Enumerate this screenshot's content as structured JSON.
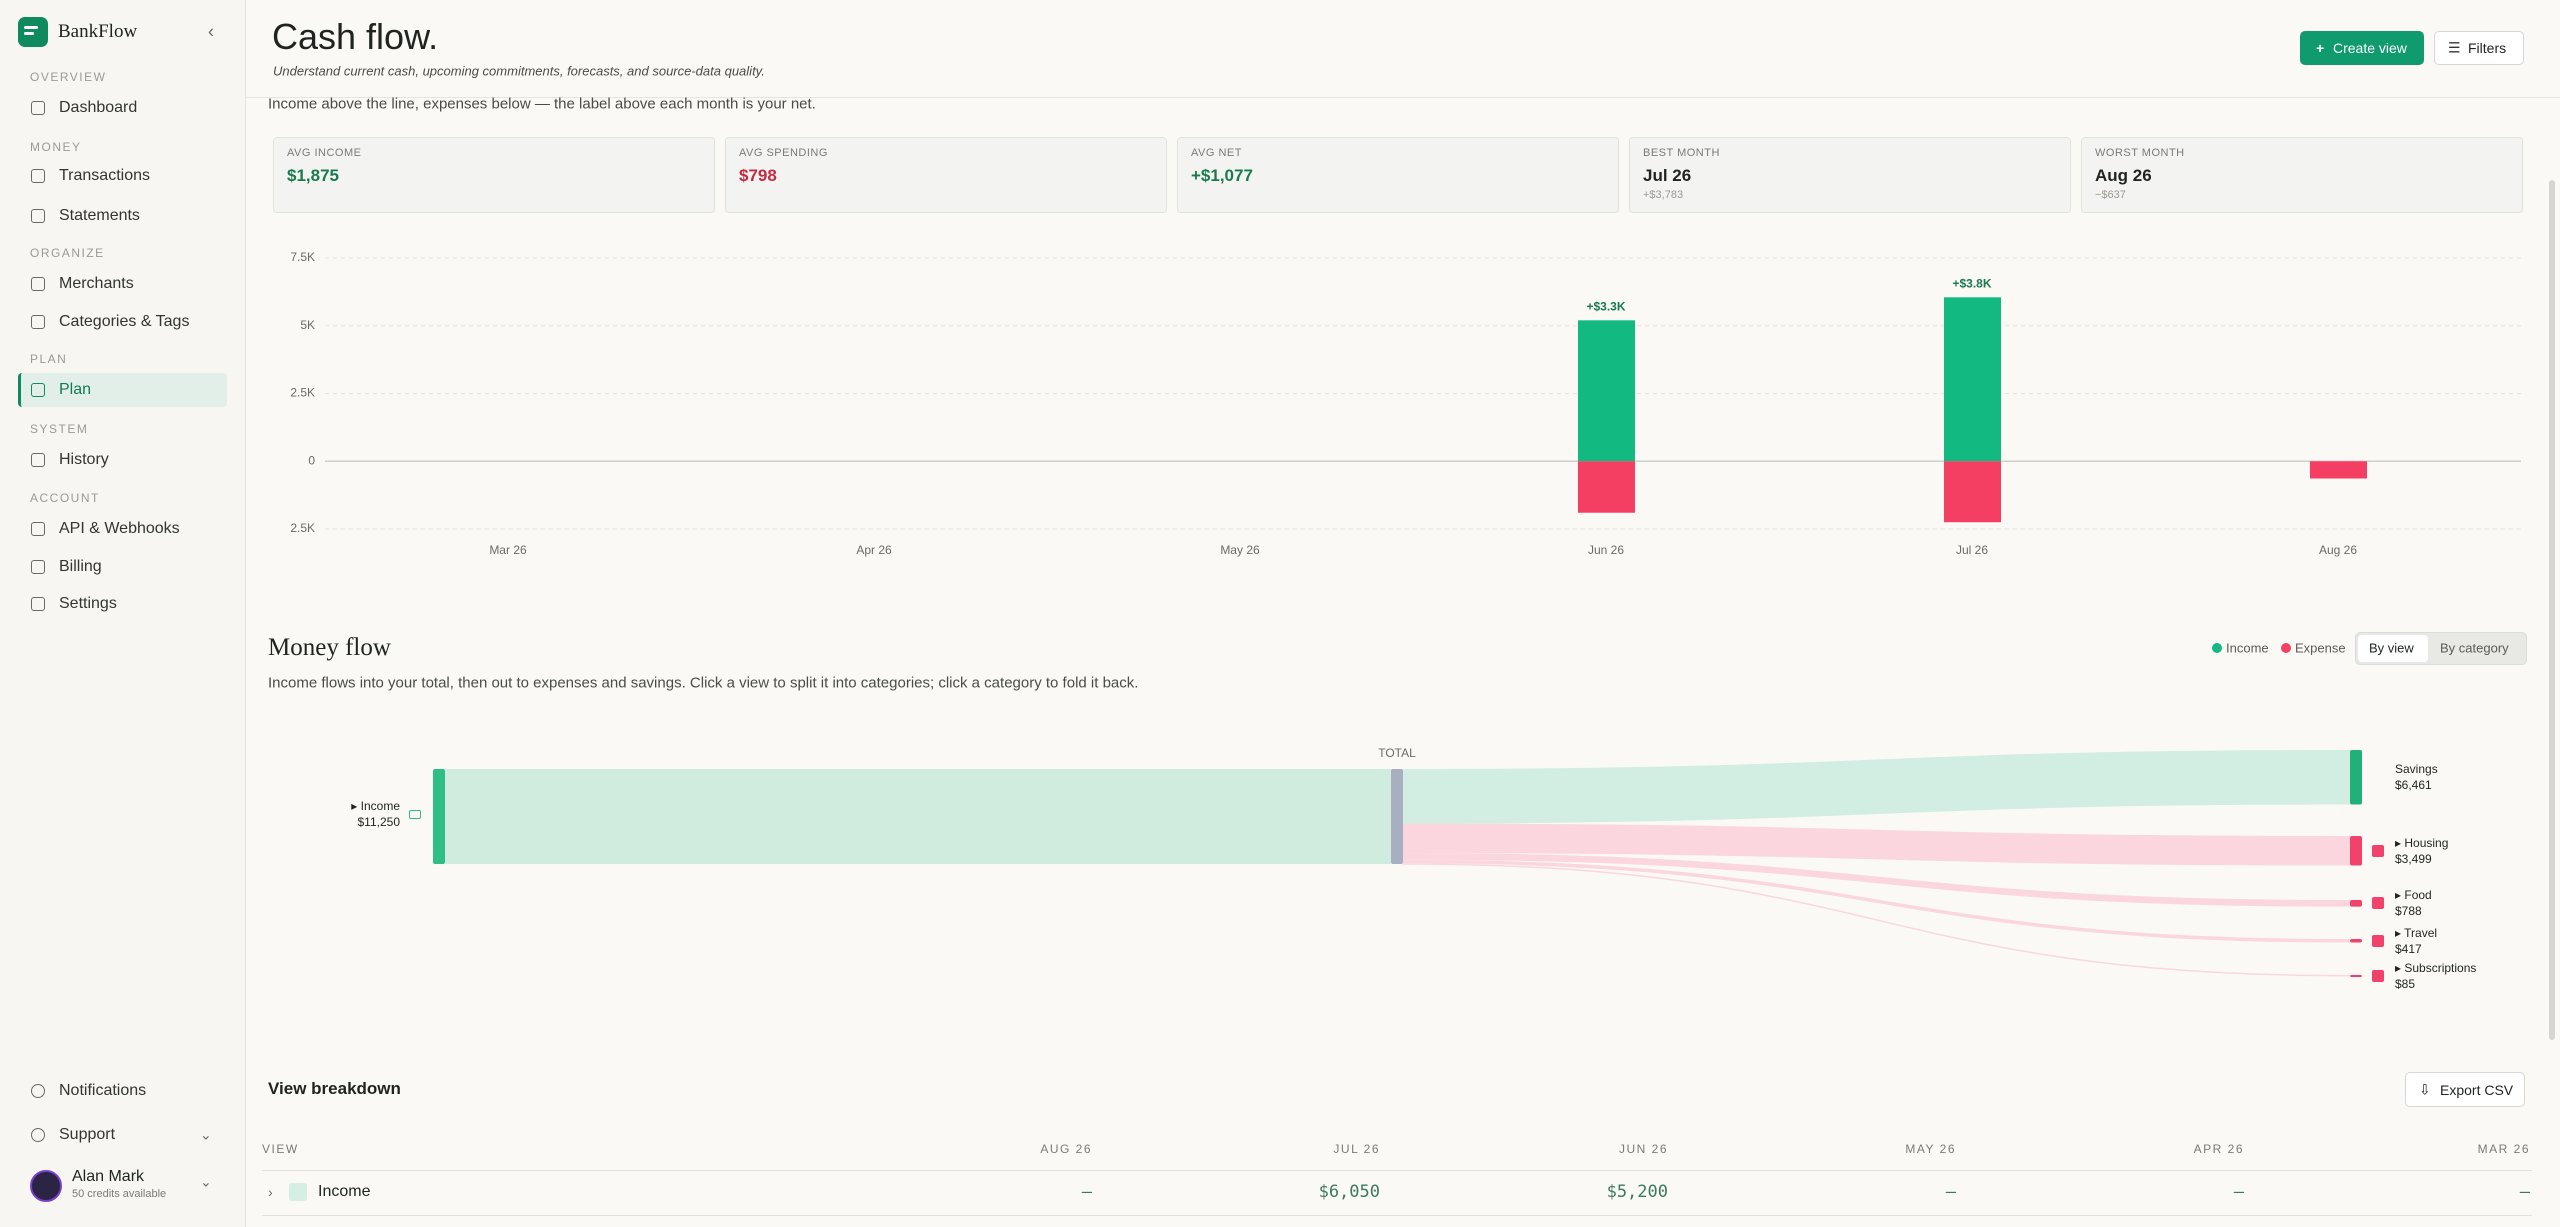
{
  "sidebar": {
    "brand": "BankFlow",
    "sections": [
      {
        "label": "OVERVIEW",
        "items": [
          "Dashboard"
        ]
      },
      {
        "label": "MONEY",
        "items": [
          "Transactions",
          "Statements"
        ]
      },
      {
        "label": "ORGANIZE",
        "items": [
          "Merchants",
          "Categories & Tags"
        ]
      },
      {
        "label": "PLAN",
        "items": [
          "Plan"
        ]
      },
      {
        "label": "SYSTEM",
        "items": [
          "History"
        ]
      },
      {
        "label": "ACCOUNT",
        "items": [
          "API & Webhooks",
          "Billing",
          "Settings"
        ]
      }
    ],
    "active": "Plan",
    "footer": [
      "Notifications",
      "Support"
    ],
    "user": {
      "name": "Alan Mark",
      "credits": "50 credits available"
    }
  },
  "header": {
    "title": "Cash flow.",
    "subtitle": "Understand current cash, upcoming commitments, forecasts, and source-data quality.",
    "buttons": [
      "Create view",
      "Filters"
    ]
  },
  "summary": {
    "note": "Income above the line, expenses below — the label above each month is your net.",
    "cards": [
      {
        "label": "AVG INCOME",
        "value": "$1,875"
      },
      {
        "label": "AVG SPENDING",
        "value": "$798"
      },
      {
        "label": "AVG NET",
        "value": "+$1,077"
      },
      {
        "label": "BEST MONTH",
        "value": "Jul 26",
        "sub": "+$3,783"
      },
      {
        "label": "WORST MONTH",
        "value": "Aug 26",
        "sub": "−$637"
      }
    ]
  },
  "chart_data": {
    "type": "bar",
    "categories": [
      "Mar 26",
      "Apr 26",
      "May 26",
      "Jun 26",
      "Jul 26",
      "Aug 26"
    ],
    "series": [
      {
        "name": "Income",
        "color": "#12b981",
        "values": [
          0,
          0,
          0,
          5200,
          6050,
          0
        ]
      },
      {
        "name": "Expense",
        "color": "#f43f63",
        "values": [
          0,
          0,
          0,
          -1900,
          -2250,
          -637
        ]
      }
    ],
    "net": {
      "values": [
        null,
        null,
        null,
        3300,
        3800,
        null
      ],
      "value_labels": [
        null,
        null,
        null,
        "+$3.3K",
        "+$3.8K",
        null
      ]
    },
    "ylim": [
      -2500,
      7500
    ],
    "yticks": [
      {
        "value": 7500,
        "label": "7.5K"
      },
      {
        "value": 5000,
        "label": "5K"
      },
      {
        "value": 2500,
        "label": "2.5K"
      },
      0,
      {
        "value": -2500,
        "label": "2.5K"
      }
    ],
    "grid": true
  },
  "money_flow": {
    "title": "Money flow",
    "description": "Income flows into your total, then out to expenses and savings. Click a view to split it into categories; click a category to fold it back.",
    "legend": [
      {
        "name": "Income",
        "color": "#12b981"
      },
      {
        "name": "Expense",
        "color": "#f43f63"
      }
    ],
    "toggle": [
      "By view",
      "By category"
    ],
    "total_label": "TOTAL",
    "sources": [
      {
        "label": "▸ Income",
        "value": 11250,
        "value_label": "$11,250"
      }
    ],
    "targets": [
      {
        "label": "Savings",
        "value": 6461,
        "value_label": "$6,461"
      },
      {
        "label": "▸ Housing",
        "value": 3499,
        "value_label": "$3,499"
      },
      {
        "label": "▸ Food",
        "value": 788,
        "value_label": "$788"
      },
      {
        "label": "▸ Travel",
        "value": 417,
        "value_label": "$417"
      },
      {
        "label": "▸ Subscriptions",
        "value": 85,
        "value_label": "$85"
      }
    ]
  },
  "breakdown": {
    "title": "View breakdown",
    "export": "Export CSV",
    "table": {
      "columns": [
        "VIEW",
        "AUG 26",
        "JUL 26",
        "JUN 26",
        "MAY 26",
        "APR 26",
        "MAR 26"
      ],
      "rows": [
        [
          "Income",
          "—",
          "$6,050",
          "$5,200",
          "—",
          "—",
          "—"
        ]
      ]
    }
  }
}
